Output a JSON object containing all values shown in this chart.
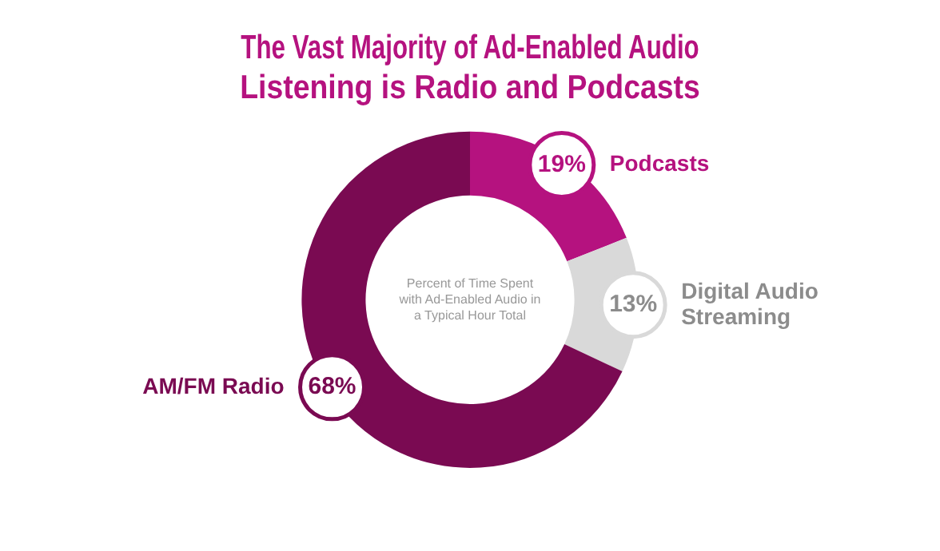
{
  "chart_data": {
    "type": "donut",
    "title": "The Vast Majority of Ad-Enabled Audio Listening is Radio and Podcasts",
    "categories": [
      "Podcasts",
      "Digital Audio Streaming",
      "AM/FM Radio"
    ],
    "values": [
      19,
      13,
      68
    ],
    "value_labels": [
      "19%",
      "13%",
      "68%"
    ],
    "colors": [
      "#b5127f",
      "#d9d9d9",
      "#7a0a52"
    ],
    "annotations": [
      "Percent of Time Spent with Ad-Enabled Audio in a Typical Hour Total"
    ],
    "legend": false
  }
}
